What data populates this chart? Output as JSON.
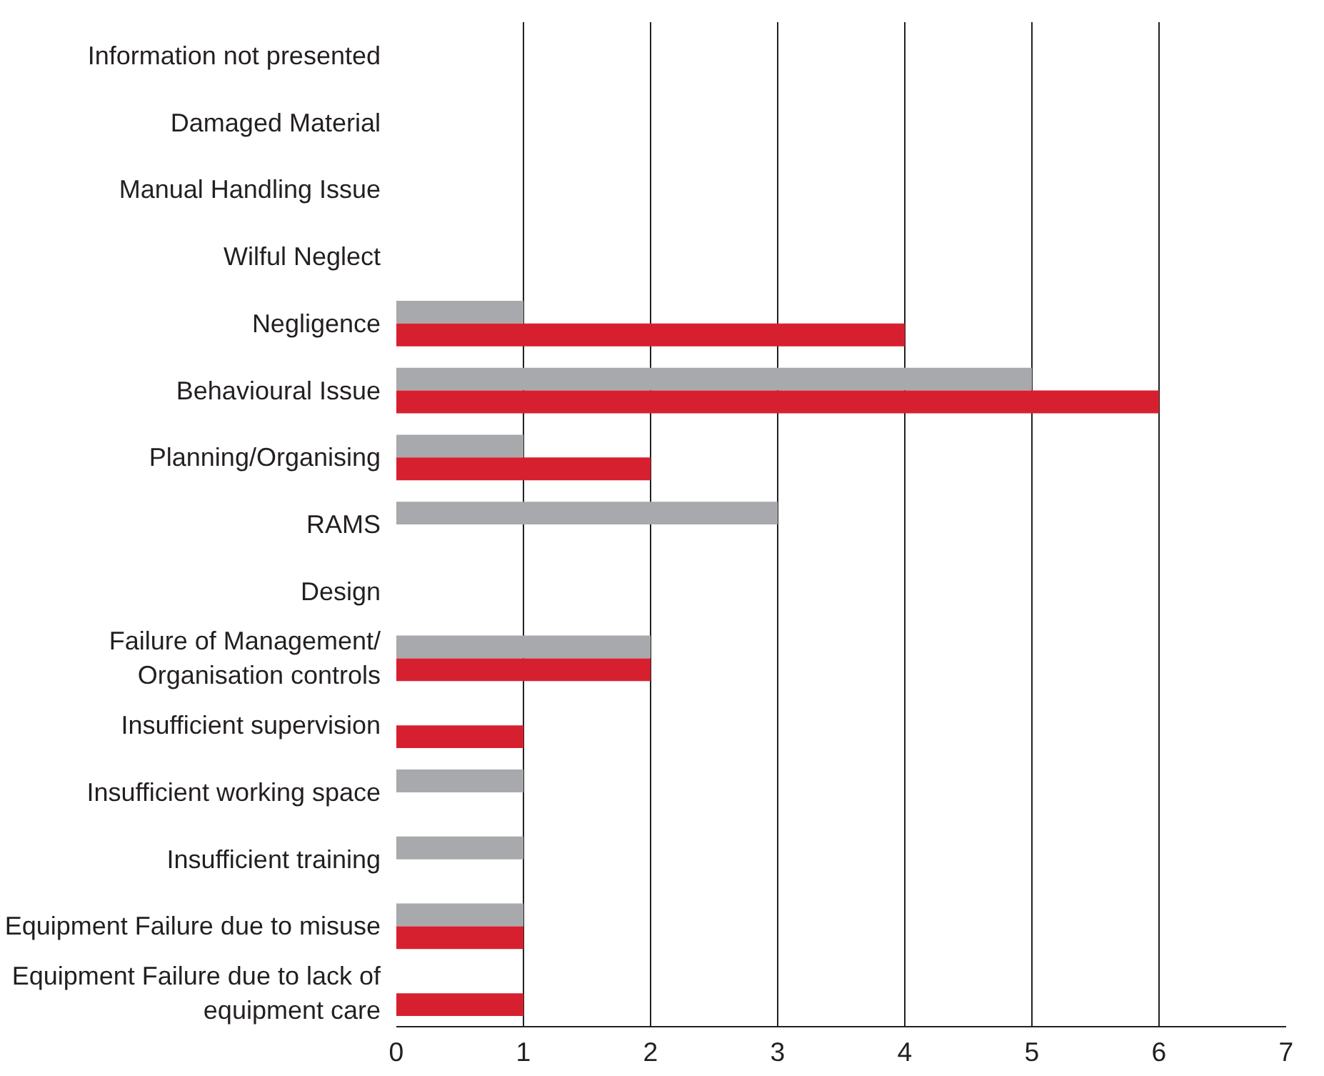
{
  "chart_data": {
    "type": "bar",
    "orientation": "horizontal",
    "categories": [
      "Information not presented",
      "Damaged Material",
      "Manual Handling Issue",
      "Wilful Neglect",
      "Negligence",
      "Behavioural Issue",
      "Planning/Organising",
      "RAMS",
      "Design",
      "Failure of Management/\nOrganisation controls",
      "Insufficient supervision",
      "Insufficient working space",
      "Insufficient training",
      "Equipment Failure due to misuse",
      "Equipment Failure due to lack of\nequipment care"
    ],
    "series": [
      {
        "color": "#a7a9ac",
        "values": [
          0,
          0,
          0,
          0,
          1,
          5,
          1,
          3,
          0,
          2,
          0,
          1,
          1,
          1,
          0
        ]
      },
      {
        "color": "#d7202f",
        "values": [
          0,
          0,
          0,
          0,
          4,
          6,
          2,
          0,
          0,
          2,
          1,
          0,
          0,
          1,
          1
        ]
      }
    ],
    "xlim": [
      0,
      7
    ],
    "xticks": [
      0,
      1,
      2,
      3,
      4,
      5,
      6,
      7
    ],
    "grid": "x"
  }
}
